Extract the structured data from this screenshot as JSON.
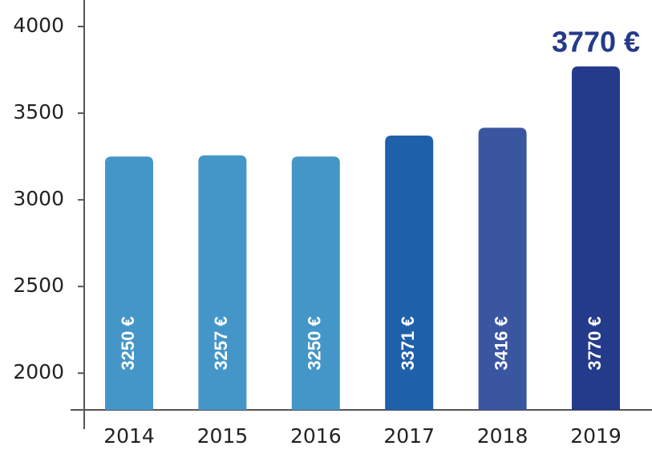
{
  "chart_data": {
    "type": "bar",
    "categories": [
      "2014",
      "2015",
      "2016",
      "2017",
      "2018",
      "2019"
    ],
    "values": [
      3250,
      3257,
      3250,
      3371,
      3416,
      3770
    ],
    "value_labels": [
      "3250 €",
      "3257 €",
      "3250 €",
      "3371 €",
      "3416 €",
      "3770 €"
    ],
    "colors": [
      "#4496c8",
      "#4496c8",
      "#4496c8",
      "#1f60ab",
      "#3b56a0",
      "#243a8a"
    ],
    "ylim": [
      1788,
      4153
    ],
    "yticks": [
      2000,
      2500,
      3000,
      3500,
      4000
    ],
    "grid": false
  }
}
